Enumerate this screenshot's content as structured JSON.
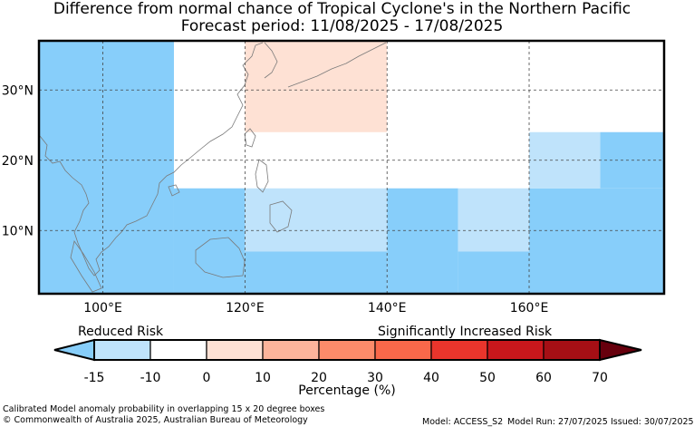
{
  "title": "Difference from normal chance of Tropical Cyclone's in the Northern Pacific",
  "subtitle": "Forecast period: 11/08/2025 - 17/08/2025",
  "map": {
    "lon_range": [
      91,
      179
    ],
    "lat_range": [
      1,
      37
    ],
    "x_ticks": [
      "100°E",
      "120°E",
      "140°E",
      "160°E"
    ],
    "y_ticks": [
      "30°N",
      "20°N",
      "10°N"
    ],
    "colors": {
      "-15_-10": "#bfe3fb",
      "below_-15": "#87cefa",
      "-10_0": "#ffffff",
      "0_10": "#fee1d4"
    },
    "boxes": [
      {
        "lon": [
          91,
          110
        ],
        "lat": [
          1,
          37
        ],
        "class": "below_-15"
      },
      {
        "lon": [
          110,
          120
        ],
        "lat": [
          1,
          16
        ],
        "class": "below_-15"
      },
      {
        "lon": [
          120,
          140
        ],
        "lat": [
          1,
          7
        ],
        "class": "below_-15"
      },
      {
        "lon": [
          140,
          150
        ],
        "lat": [
          1,
          16
        ],
        "class": "below_-15"
      },
      {
        "lon": [
          150,
          160
        ],
        "lat": [
          1,
          7
        ],
        "class": "below_-15"
      },
      {
        "lon": [
          160,
          179
        ],
        "lat": [
          1,
          16
        ],
        "class": "below_-15"
      },
      {
        "lon": [
          170,
          179
        ],
        "lat": [
          16,
          24
        ],
        "class": "below_-15"
      },
      {
        "lon": [
          120,
          140
        ],
        "lat": [
          7,
          16
        ],
        "class": "-15_-10"
      },
      {
        "lon": [
          150,
          160
        ],
        "lat": [
          7,
          16
        ],
        "class": "-15_-10"
      },
      {
        "lon": [
          160,
          170
        ],
        "lat": [
          16,
          24
        ],
        "class": "-15_-10"
      },
      {
        "lon": [
          120,
          140
        ],
        "lat": [
          24,
          37
        ],
        "class": "0_10"
      }
    ]
  },
  "colorbar": {
    "left_label": "Reduced Risk",
    "right_label": "Significantly Increased Risk",
    "tick_labels": [
      "-15",
      "-10",
      "0",
      "10",
      "20",
      "30",
      "40",
      "50",
      "60",
      "70"
    ],
    "colors": [
      "#87cefa",
      "#bfe3fb",
      "#ffffff",
      "#fee1d4",
      "#fcb49b",
      "#fc8b6a",
      "#f9684a",
      "#e9352c",
      "#c9171c",
      "#a50f15",
      "#67000d"
    ],
    "axis_label": "Percentage (%)"
  },
  "footer": {
    "line1": "Calibrated Model anomaly probability in overlapping 15 x 20 degree boxes",
    "line2": "© Commonwealth of Australia 2025, Australian Bureau of Meteorology",
    "model": "Model: ACCESS_S2",
    "run": "Model Run: 27/07/2025",
    "issued": "Issued: 30/07/2025"
  }
}
